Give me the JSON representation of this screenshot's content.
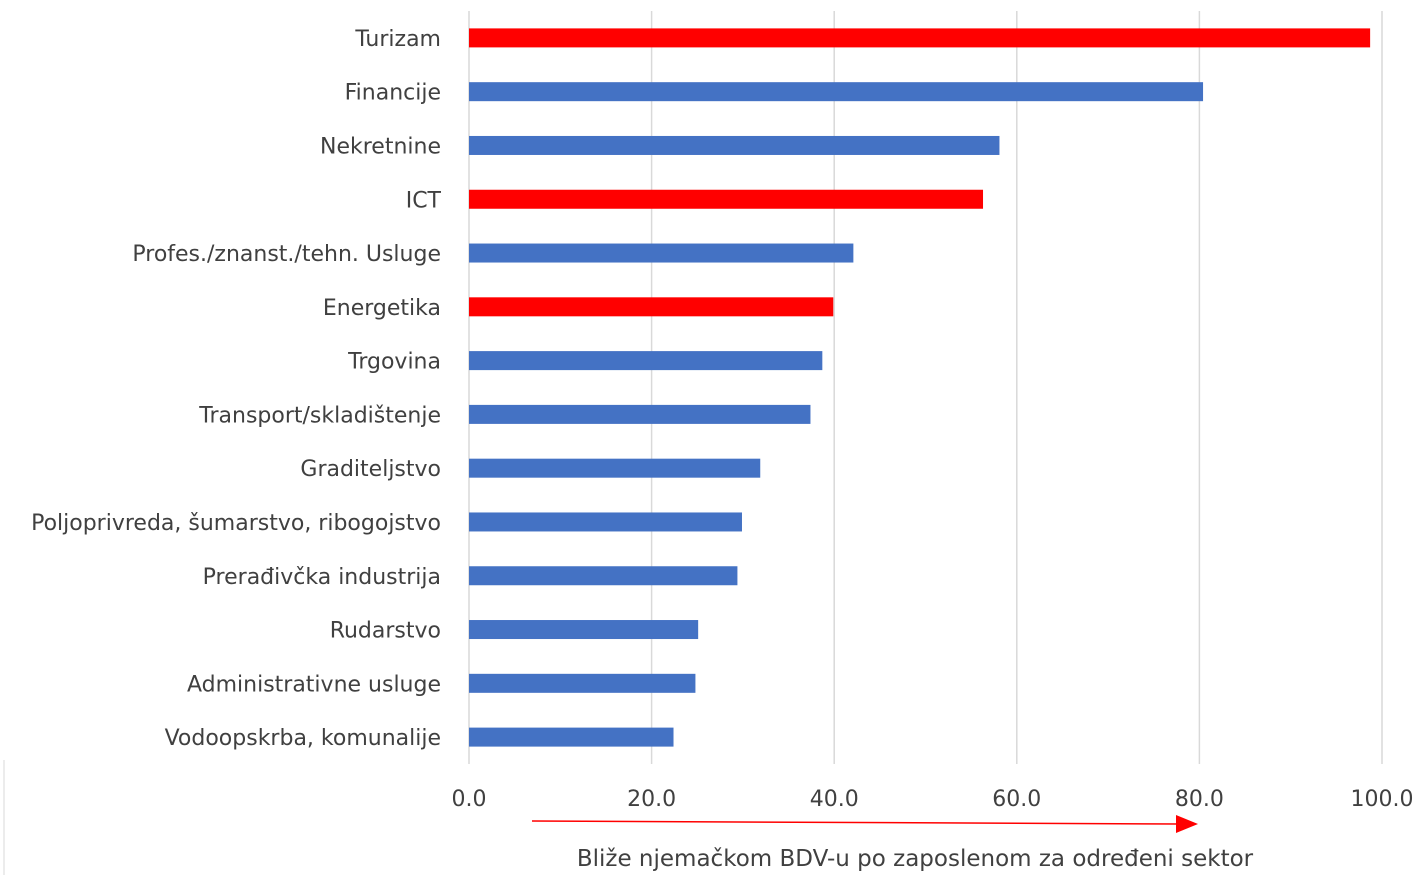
{
  "chart_data": {
    "type": "bar",
    "orientation": "horizontal",
    "categories": [
      "Turizam",
      "Financije",
      "Nekretnine",
      "ICT",
      "Profes./znanst./tehn. Usluge",
      "Energetika",
      "Trgovina",
      "Transport/skladištenje",
      "Graditeljstvo",
      "Poljoprivreda, šumarstvo, ribogojstvo",
      "Prerađivčka industrija",
      "Rudarstvo",
      "Administrativne usluge",
      "Vodoopskrba, komunalije"
    ],
    "values": [
      98.7,
      80.4,
      58.1,
      56.3,
      42.1,
      39.9,
      38.7,
      37.4,
      31.9,
      29.9,
      29.4,
      25.1,
      24.8,
      22.4
    ],
    "highlighted": [
      true,
      false,
      false,
      true,
      false,
      true,
      false,
      false,
      false,
      false,
      false,
      false,
      false,
      false
    ],
    "xlim": [
      0,
      100
    ],
    "xticks": [
      "0.0",
      "20.0",
      "40.0",
      "60.0",
      "80.0",
      "100.0"
    ],
    "xtick_values": [
      0,
      20,
      40,
      60,
      80,
      100
    ],
    "xlabel": "Bliže njemačkom BDV-u po zaposlenom za određeni sektor",
    "grid": true,
    "legend": "none",
    "colors": {
      "default": "#4472c4",
      "highlight": "#ff0000",
      "arrow": "#ff0000",
      "grid": "#d9d9d9",
      "text": "#404040"
    }
  }
}
